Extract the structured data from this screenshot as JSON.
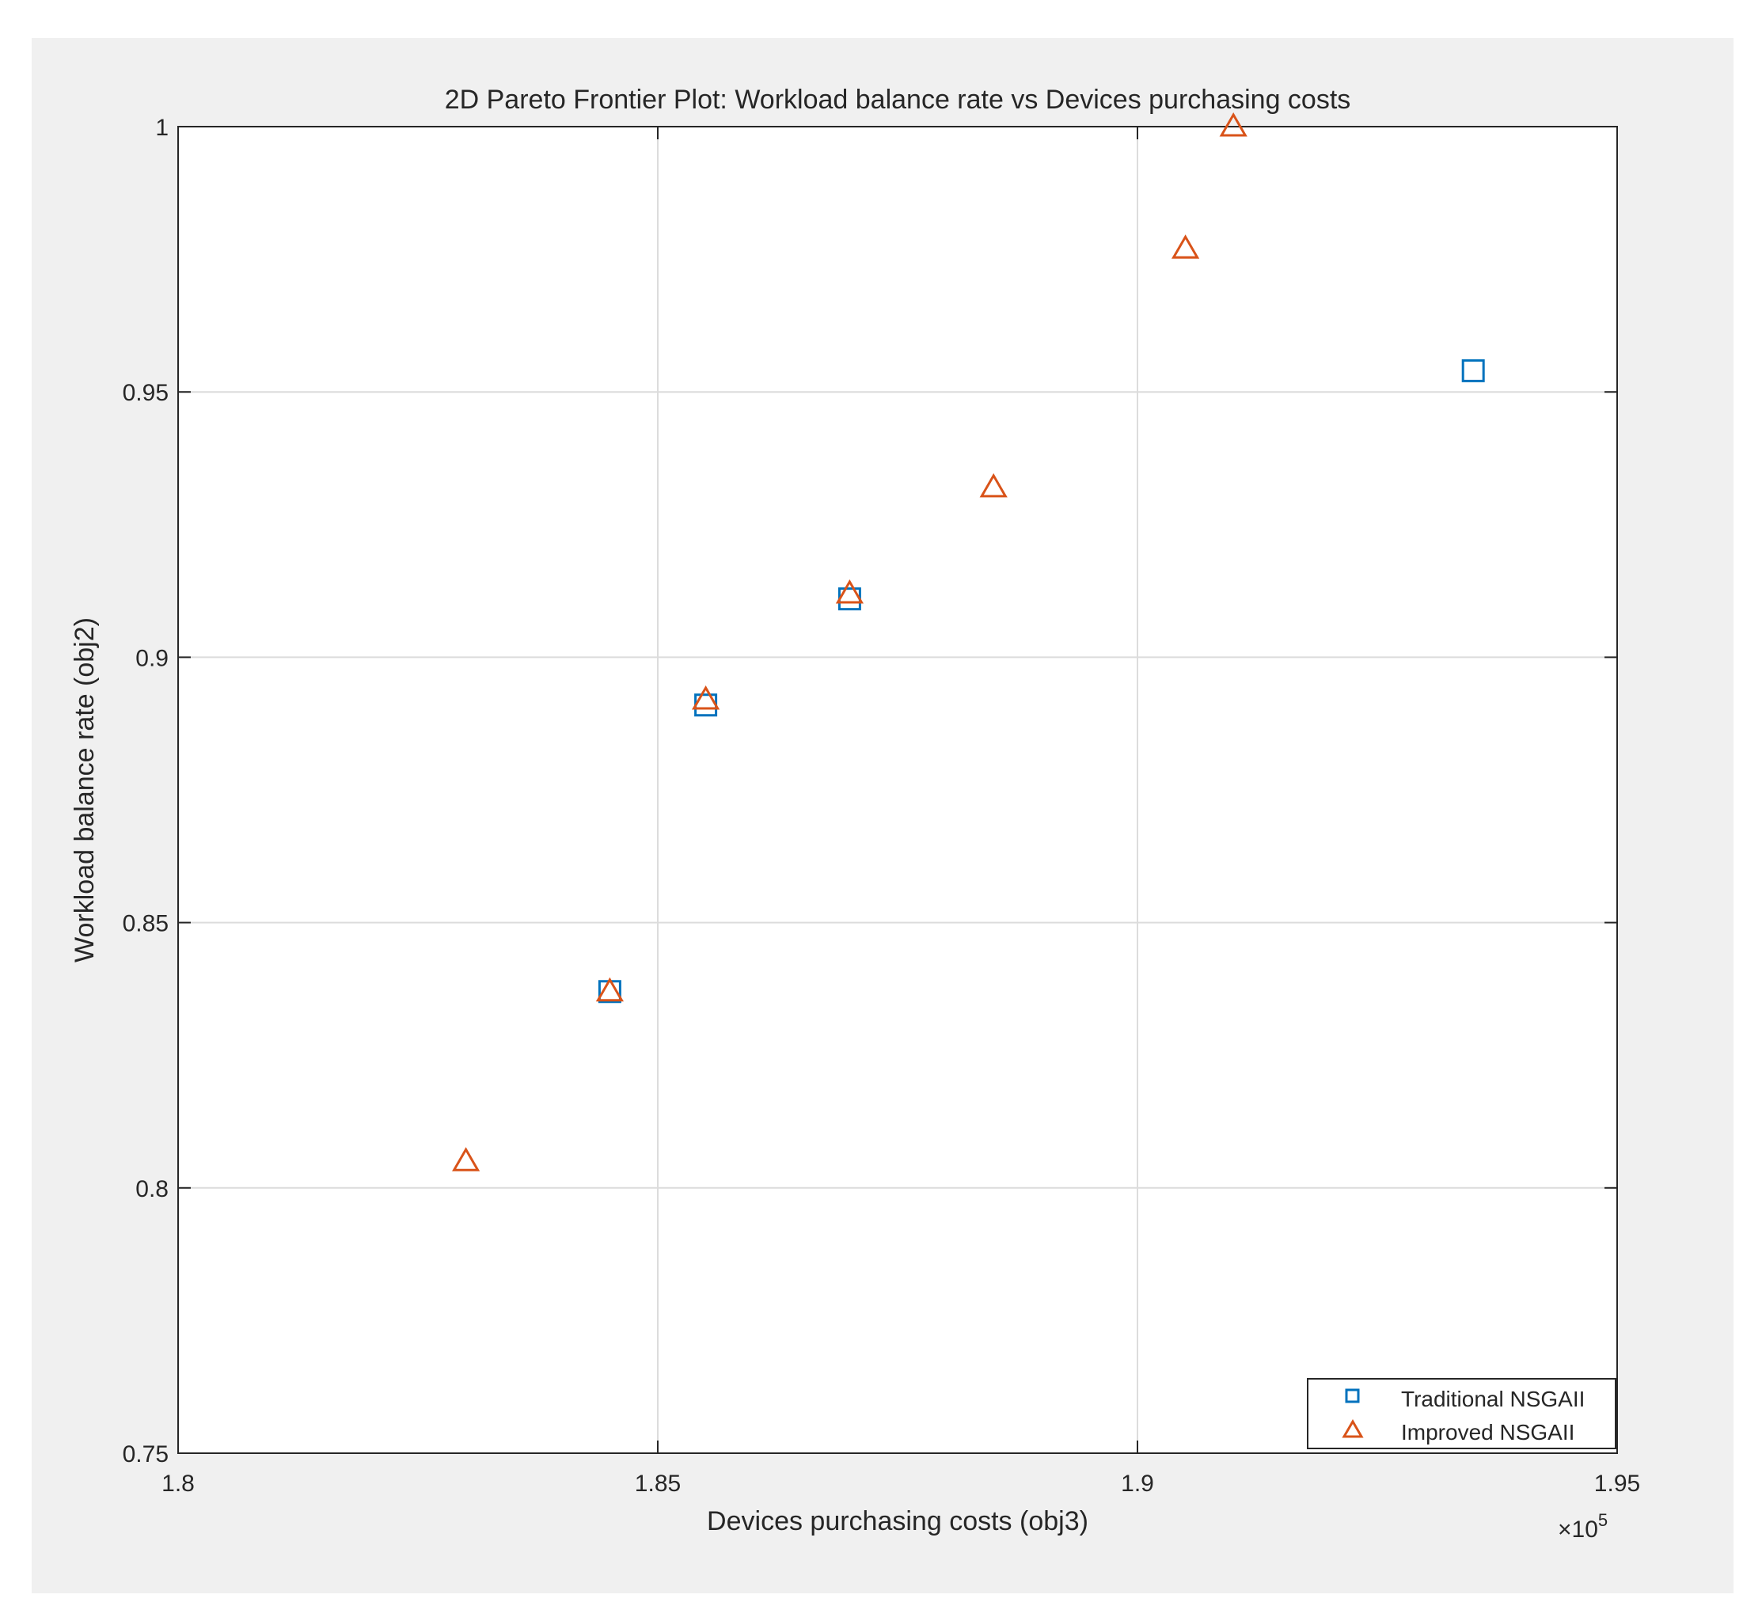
{
  "chart_data": {
    "type": "scatter",
    "title": "2D Pareto Frontier Plot: Workload balance rate vs Devices purchasing costs",
    "xlabel": "Devices purchasing costs (obj3)",
    "ylabel": "Workload balance rate (obj2)",
    "x_exponent_label": "×10",
    "x_exponent_power": "5",
    "xlim": [
      1.8,
      1.95
    ],
    "ylim": [
      0.75,
      1.0
    ],
    "x_ticks": [
      1.8,
      1.85,
      1.9,
      1.95
    ],
    "x_tick_labels": [
      "1.8",
      "1.85",
      "1.9",
      "1.95"
    ],
    "y_ticks": [
      0.75,
      0.8,
      0.85,
      0.9,
      0.95,
      1.0
    ],
    "y_tick_labels": [
      "0.75",
      "0.8",
      "0.85",
      "0.9",
      "0.95",
      "1"
    ],
    "grid": true,
    "legend_position": "bottom-right",
    "series": [
      {
        "name": "Traditional NSGAII",
        "marker": "square",
        "color": "#0072BD",
        "x": [
          1.845,
          1.855,
          1.87,
          1.935
        ],
        "y": [
          0.837,
          0.891,
          0.911,
          0.954
        ]
      },
      {
        "name": "Improved NSGAII",
        "marker": "triangle",
        "color": "#D95319",
        "x": [
          1.83,
          1.845,
          1.855,
          1.87,
          1.885,
          1.905,
          1.91
        ],
        "y": [
          0.805,
          0.837,
          0.892,
          0.912,
          0.932,
          0.977,
          1.0
        ]
      }
    ]
  }
}
